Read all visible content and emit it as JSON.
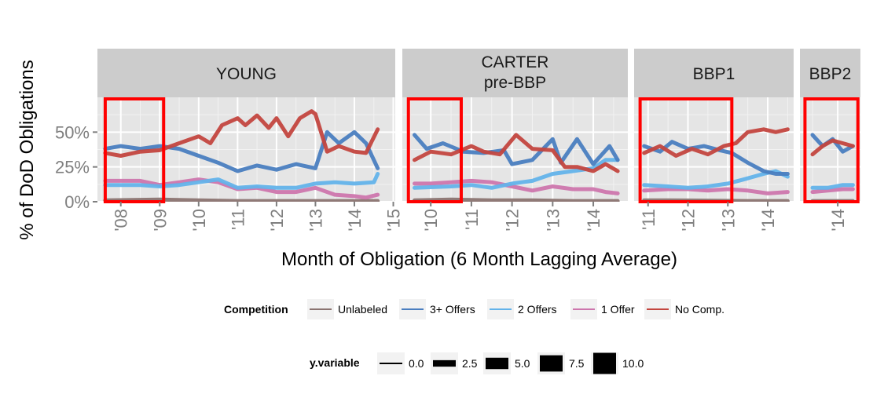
{
  "chart_data": {
    "type": "line",
    "ylabel": "% of DoD Obligations",
    "xlabel": "Month of Obligation (6 Month Lagging Average)",
    "ylim": [
      0,
      0.75
    ],
    "y_ticks": [
      {
        "value": 0.0,
        "label": "0%"
      },
      {
        "value": 0.25,
        "label": "25%"
      },
      {
        "value": 0.5,
        "label": "50%"
      }
    ],
    "grid": true,
    "legend_position": "bottom",
    "highlight_color": "#ff0000",
    "series_meta": [
      {
        "key": "unlabeled",
        "name": "Unlabeled",
        "color": "#8b7471"
      },
      {
        "key": "three_plus",
        "name": "3+ Offers",
        "color": "#4a7ec0"
      },
      {
        "key": "two",
        "name": "2 Offers",
        "color": "#63b3ea"
      },
      {
        "key": "one",
        "name": "1 Offer",
        "color": "#cd76ad"
      },
      {
        "key": "nocomp",
        "name": "No Comp.",
        "color": "#c3463f"
      }
    ],
    "panels": [
      {
        "title": [
          "YOUNG"
        ],
        "x_range": [
          2007.4,
          2015.05
        ],
        "x_ticks": [
          {
            "value": 2008,
            "label": "'08"
          },
          {
            "value": 2009,
            "label": "'09"
          },
          {
            "value": 2010,
            "label": "'10"
          },
          {
            "value": 2011,
            "label": "'11"
          },
          {
            "value": 2012,
            "label": "'12"
          },
          {
            "value": 2013,
            "label": "'13"
          },
          {
            "value": 2014,
            "label": "'14"
          },
          {
            "value": 2015,
            "label": "'15"
          }
        ],
        "highlight": [
          2007.6,
          2009.1
        ],
        "series": {
          "nocomp": {
            "x": [
              2007.6,
              2008.0,
              2008.5,
              2009.0,
              2009.5,
              2010.0,
              2010.3,
              2010.6,
              2011.0,
              2011.2,
              2011.5,
              2011.8,
              2012.0,
              2012.3,
              2012.6,
              2012.9,
              2013.0,
              2013.3,
              2013.6,
              2014.0,
              2014.3,
              2014.6
            ],
            "y": [
              0.35,
              0.33,
              0.36,
              0.37,
              0.42,
              0.47,
              0.42,
              0.55,
              0.6,
              0.55,
              0.62,
              0.53,
              0.6,
              0.47,
              0.6,
              0.65,
              0.63,
              0.36,
              0.4,
              0.36,
              0.35,
              0.52
            ]
          },
          "three_plus": {
            "x": [
              2007.6,
              2008.0,
              2008.5,
              2009.0,
              2009.5,
              2010.0,
              2010.5,
              2011.0,
              2011.5,
              2012.0,
              2012.5,
              2013.0,
              2013.3,
              2013.6,
              2014.0,
              2014.3,
              2014.6
            ],
            "y": [
              0.38,
              0.4,
              0.38,
              0.4,
              0.38,
              0.33,
              0.28,
              0.22,
              0.26,
              0.23,
              0.27,
              0.24,
              0.5,
              0.42,
              0.5,
              0.42,
              0.24
            ]
          },
          "two": {
            "x": [
              2007.6,
              2008.5,
              2009.0,
              2009.5,
              2010.0,
              2010.5,
              2011.0,
              2011.5,
              2012.0,
              2012.5,
              2013.0,
              2013.5,
              2014.0,
              2014.5,
              2014.6
            ],
            "y": [
              0.12,
              0.12,
              0.11,
              0.12,
              0.14,
              0.16,
              0.1,
              0.11,
              0.1,
              0.1,
              0.13,
              0.14,
              0.13,
              0.14,
              0.2
            ]
          },
          "one": {
            "x": [
              2007.6,
              2008.5,
              2009.0,
              2009.5,
              2010.0,
              2010.5,
              2011.0,
              2011.5,
              2012.0,
              2012.5,
              2013.0,
              2013.5,
              2014.0,
              2014.3,
              2014.6
            ],
            "y": [
              0.15,
              0.15,
              0.12,
              0.14,
              0.16,
              0.14,
              0.09,
              0.1,
              0.07,
              0.07,
              0.1,
              0.05,
              0.04,
              0.03,
              0.05
            ]
          },
          "unlabeled": {
            "x": [
              2007.6,
              2009.0,
              2010.0,
              2011.0,
              2012.0,
              2013.0,
              2014.0,
              2014.6
            ],
            "y": [
              0.01,
              0.015,
              0.01,
              0.005,
              0.005,
              0.005,
              0.005,
              0.005
            ]
          }
        }
      },
      {
        "title": [
          "CARTER",
          "pre-BBP"
        ],
        "x_range": [
          2009.3,
          2014.85
        ],
        "x_ticks": [
          {
            "value": 2009,
            "label": "'09"
          },
          {
            "value": 2010,
            "label": "'10"
          },
          {
            "value": 2011,
            "label": "'11"
          },
          {
            "value": 2012,
            "label": "'12"
          },
          {
            "value": 2013,
            "label": "'13"
          },
          {
            "value": 2014,
            "label": "'14"
          }
        ],
        "highlight": [
          2009.45,
          2010.75
        ],
        "series": {
          "three_plus": {
            "x": [
              2009.6,
              2009.9,
              2010.3,
              2010.8,
              2011.3,
              2011.8,
              2012.0,
              2012.5,
              2013.0,
              2013.2,
              2013.6,
              2014.0,
              2014.4,
              2014.6
            ],
            "y": [
              0.48,
              0.38,
              0.42,
              0.36,
              0.35,
              0.37,
              0.27,
              0.3,
              0.45,
              0.28,
              0.45,
              0.27,
              0.4,
              0.3
            ]
          },
          "nocomp": {
            "x": [
              2009.6,
              2010.0,
              2010.5,
              2011.0,
              2011.3,
              2011.7,
              2012.1,
              2012.5,
              2013.0,
              2013.3,
              2013.6,
              2014.0,
              2014.3,
              2014.6
            ],
            "y": [
              0.3,
              0.36,
              0.34,
              0.4,
              0.36,
              0.34,
              0.48,
              0.38,
              0.37,
              0.25,
              0.25,
              0.22,
              0.27,
              0.22
            ]
          },
          "two": {
            "x": [
              2009.6,
              2010.5,
              2011.0,
              2011.5,
              2012.0,
              2012.5,
              2013.0,
              2013.5,
              2014.0,
              2014.3,
              2014.6
            ],
            "y": [
              0.1,
              0.11,
              0.12,
              0.1,
              0.13,
              0.15,
              0.2,
              0.22,
              0.24,
              0.3,
              0.3
            ]
          },
          "one": {
            "x": [
              2009.6,
              2010.0,
              2010.5,
              2011.0,
              2011.5,
              2012.0,
              2012.5,
              2013.0,
              2013.5,
              2014.0,
              2014.3,
              2014.6
            ],
            "y": [
              0.13,
              0.13,
              0.14,
              0.15,
              0.14,
              0.11,
              0.08,
              0.11,
              0.09,
              0.09,
              0.07,
              0.06
            ]
          },
          "unlabeled": {
            "x": [
              2009.6,
              2010.5,
              2011.5,
              2012.5,
              2013.5,
              2014.6
            ],
            "y": [
              0.01,
              0.015,
              0.01,
              0.01,
              0.005,
              0.005
            ]
          }
        }
      },
      {
        "title": [
          "BBP1"
        ],
        "x_range": [
          2010.65,
          2014.65
        ],
        "x_ticks": [
          {
            "value": 2011,
            "label": "'11"
          },
          {
            "value": 2012,
            "label": "'12"
          },
          {
            "value": 2013,
            "label": "'13"
          },
          {
            "value": 2014,
            "label": "'14"
          }
        ],
        "highlight": [
          2010.8,
          2013.1
        ],
        "series": {
          "three_plus": {
            "x": [
              2010.9,
              2011.3,
              2011.6,
              2012.0,
              2012.4,
              2012.8,
              2013.1,
              2013.5,
              2013.9,
              2014.2,
              2014.5
            ],
            "y": [
              0.4,
              0.36,
              0.43,
              0.38,
              0.4,
              0.37,
              0.35,
              0.28,
              0.22,
              0.2,
              0.2
            ]
          },
          "nocomp": {
            "x": [
              2010.9,
              2011.3,
              2011.7,
              2012.1,
              2012.5,
              2012.9,
              2013.2,
              2013.5,
              2013.9,
              2014.2,
              2014.5
            ],
            "y": [
              0.35,
              0.4,
              0.33,
              0.38,
              0.34,
              0.4,
              0.42,
              0.5,
              0.52,
              0.5,
              0.52
            ]
          },
          "two": {
            "x": [
              2010.9,
              2011.5,
              2012.0,
              2012.5,
              2013.0,
              2013.4,
              2013.9,
              2014.2,
              2014.5
            ],
            "y": [
              0.12,
              0.11,
              0.1,
              0.11,
              0.13,
              0.16,
              0.2,
              0.22,
              0.18
            ]
          },
          "one": {
            "x": [
              2010.9,
              2011.5,
              2012.0,
              2012.5,
              2013.0,
              2013.5,
              2014.0,
              2014.5
            ],
            "y": [
              0.08,
              0.09,
              0.09,
              0.08,
              0.09,
              0.08,
              0.06,
              0.07
            ]
          },
          "unlabeled": {
            "x": [
              2010.9,
              2011.5,
              2012.5,
              2013.5,
              2014.5
            ],
            "y": [
              0.01,
              0.01,
              0.008,
              0.005,
              0.005
            ]
          }
        }
      },
      {
        "title": [
          "BBP2"
        ],
        "x_range": [
          2013.25,
          2014.45
        ],
        "x_ticks": [
          {
            "value": 2014,
            "label": "'14"
          }
        ],
        "highlight": [
          2013.35,
          2014.4
        ],
        "series": {
          "three_plus": {
            "x": [
              2013.5,
              2013.7,
              2013.9,
              2014.1,
              2014.3
            ],
            "y": [
              0.48,
              0.4,
              0.45,
              0.36,
              0.4
            ]
          },
          "nocomp": {
            "x": [
              2013.5,
              2013.7,
              2013.9,
              2014.1,
              2014.3
            ],
            "y": [
              0.34,
              0.4,
              0.44,
              0.42,
              0.4
            ]
          },
          "two": {
            "x": [
              2013.5,
              2013.8,
              2014.1,
              2014.3
            ],
            "y": [
              0.1,
              0.1,
              0.12,
              0.12
            ]
          },
          "one": {
            "x": [
              2013.5,
              2013.8,
              2014.1,
              2014.3
            ],
            "y": [
              0.07,
              0.08,
              0.09,
              0.09
            ]
          },
          "unlabeled": {
            "x": [
              2013.5,
              2014.3
            ],
            "y": [
              0.005,
              0.005
            ]
          }
        }
      }
    ]
  },
  "legend_color": {
    "title": "Competition",
    "items": [
      "Unlabeled",
      "3+ Offers",
      "2 Offers",
      "1 Offer",
      "No Comp."
    ]
  },
  "legend_size": {
    "title": "y.variable",
    "items": [
      {
        "label": "0.0",
        "value": 0.0
      },
      {
        "label": "2.5",
        "value": 2.5
      },
      {
        "label": "5.0",
        "value": 5.0
      },
      {
        "label": "7.5",
        "value": 7.5
      },
      {
        "label": "10.0",
        "value": 10.0
      }
    ]
  }
}
